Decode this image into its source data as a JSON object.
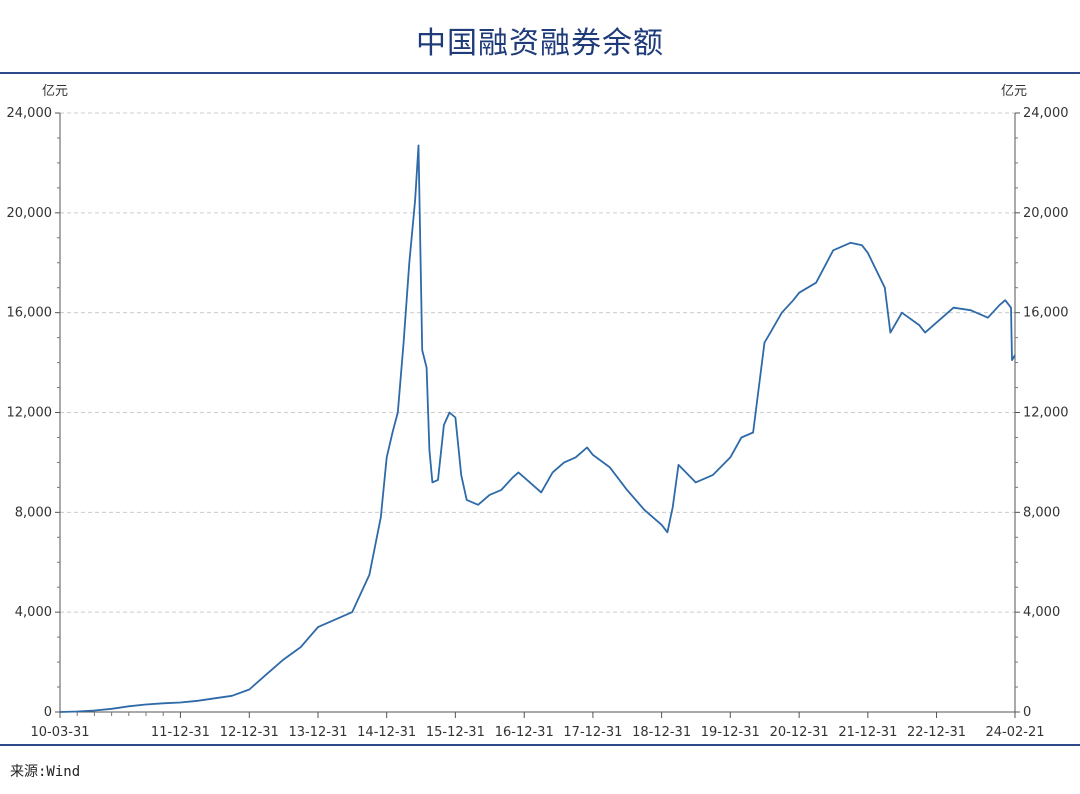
{
  "title": "中国融资融券余额",
  "source": "来源:Wind",
  "chart_data": {
    "type": "line",
    "title": "中国融资融券余额",
    "y_unit_left": "亿元",
    "y_unit_right": "亿元",
    "ylim": [
      0,
      24000
    ],
    "y_ticks": [
      0,
      4000,
      8000,
      12000,
      16000,
      20000,
      24000
    ],
    "y_tick_labels": [
      "0",
      "4,000",
      "8,000",
      "12,000",
      "16,000",
      "20,000",
      "24,000"
    ],
    "x_ticks": [
      "10-03-31",
      "11-12-31",
      "12-12-31",
      "13-12-31",
      "14-12-31",
      "15-12-31",
      "16-12-31",
      "17-12-31",
      "18-12-31",
      "19-12-31",
      "20-12-31",
      "21-12-31",
      "22-12-31",
      "24-02-21"
    ],
    "x_tick_dates": [
      "2010-03-31",
      "2011-12-31",
      "2012-12-31",
      "2013-12-31",
      "2014-12-31",
      "2015-12-31",
      "2016-12-31",
      "2017-12-31",
      "2018-12-31",
      "2019-12-31",
      "2020-12-31",
      "2021-12-31",
      "2022-12-31",
      "2024-02-21"
    ],
    "grid": "horizontal dashed",
    "series_color": "#2e6aa8",
    "series": [
      {
        "x": [
          "2010-03-31",
          "2010-06-30",
          "2010-09-30",
          "2010-12-31",
          "2011-03-31",
          "2011-06-30",
          "2011-09-30",
          "2011-12-31",
          "2012-03-31",
          "2012-06-30",
          "2012-09-30",
          "2012-12-31",
          "2013-03-31",
          "2013-06-30",
          "2013-09-30",
          "2013-12-31",
          "2014-03-31",
          "2014-06-30",
          "2014-09-30",
          "2014-11-30",
          "2014-12-31",
          "2015-01-31",
          "2015-02-28",
          "2015-03-31",
          "2015-04-30",
          "2015-05-31",
          "2015-06-18",
          "2015-07-08",
          "2015-07-31",
          "2015-08-15",
          "2015-08-31",
          "2015-09-30",
          "2015-10-31",
          "2015-11-30",
          "2015-12-31",
          "2016-01-31",
          "2016-02-29",
          "2016-04-30",
          "2016-06-30",
          "2016-08-31",
          "2016-10-31",
          "2016-11-30",
          "2016-12-31",
          "2017-03-31",
          "2017-05-31",
          "2017-07-31",
          "2017-09-30",
          "2017-11-30",
          "2017-12-31",
          "2018-03-31",
          "2018-06-30",
          "2018-09-30",
          "2018-11-30",
          "2018-12-31",
          "2019-01-31",
          "2019-02-28",
          "2019-03-31",
          "2019-06-30",
          "2019-09-30",
          "2019-12-31",
          "2020-02-28",
          "2020-04-30",
          "2020-06-30",
          "2020-07-31",
          "2020-09-30",
          "2020-11-30",
          "2020-12-31",
          "2021-03-31",
          "2021-06-30",
          "2021-09-30",
          "2021-11-30",
          "2021-12-31",
          "2022-03-31",
          "2022-04-30",
          "2022-06-30",
          "2022-09-30",
          "2022-10-31",
          "2022-12-31",
          "2023-03-31",
          "2023-06-30",
          "2023-09-30",
          "2023-11-30",
          "2023-12-31",
          "2024-01-31",
          "2024-02-05",
          "2024-02-21"
        ],
        "y": [
          0,
          20,
          60,
          130,
          230,
          300,
          350,
          380,
          450,
          550,
          650,
          900,
          1500,
          2100,
          2600,
          3400,
          3700,
          4000,
          5500,
          7800,
          10200,
          11200,
          12000,
          14800,
          18000,
          20500,
          22700,
          14500,
          13800,
          10500,
          9200,
          9300,
          11500,
          12000,
          11800,
          9500,
          8500,
          8300,
          8700,
          8900,
          9400,
          9600,
          9400,
          8800,
          9600,
          10000,
          10200,
          10600,
          10300,
          9800,
          8900,
          8100,
          7700,
          7500,
          7200,
          8200,
          9900,
          9200,
          9500,
          10200,
          11000,
          11200,
          14800,
          15200,
          16000,
          16500,
          16800,
          17200,
          18500,
          18800,
          18700,
          18400,
          17000,
          15200,
          16000,
          15500,
          15200,
          15600,
          16200,
          16100,
          15800,
          16300,
          16500,
          16200,
          14100,
          14300
        ]
      }
    ]
  }
}
